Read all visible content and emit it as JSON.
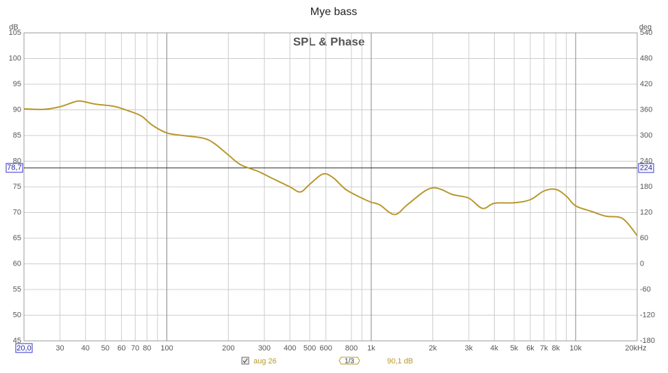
{
  "chart_data": {
    "type": "line",
    "title": "Mye bass",
    "subtitle": "SPL & Phase",
    "y_unit": "dB",
    "y2_unit": "deg",
    "log_x": true,
    "grid": true,
    "x": [
      20,
      25,
      30,
      35,
      38,
      45,
      55,
      65,
      75,
      85,
      100,
      120,
      150,
      170,
      200,
      230,
      280,
      330,
      400,
      450,
      500,
      580,
      650,
      750,
      900,
      1000,
      1100,
      1300,
      1500,
      1800,
      2000,
      2200,
      2500,
      3000,
      3500,
      4000,
      5000,
      6000,
      7000,
      8000,
      9000,
      10000,
      12000,
      14000,
      17000,
      20000
    ],
    "series": [
      {
        "name": "aug 26",
        "color": "#b8972b",
        "values": [
          90.2,
          90.1,
          90.6,
          91.5,
          91.7,
          91.1,
          90.7,
          89.8,
          88.8,
          87.0,
          85.5,
          85.0,
          84.5,
          83.5,
          81.2,
          79.3,
          78.0,
          76.6,
          75.0,
          74.0,
          75.5,
          77.5,
          76.8,
          74.5,
          72.8,
          72.0,
          71.5,
          69.6,
          71.5,
          74.0,
          74.8,
          74.5,
          73.5,
          72.8,
          70.8,
          71.8,
          71.9,
          72.5,
          74.2,
          74.5,
          73.2,
          71.3,
          70.2,
          69.3,
          68.8,
          65.5
        ]
      }
    ],
    "xlim": [
      20,
      20000
    ],
    "xticks": [
      {
        "value": 20,
        "label": "20,0"
      },
      30,
      40,
      50,
      60,
      70,
      80,
      100,
      200,
      300,
      400,
      500,
      600,
      800,
      {
        "value": 1000,
        "label": "1k"
      },
      {
        "value": 2000,
        "label": "2k"
      },
      {
        "value": 3000,
        "label": "3k"
      },
      {
        "value": 4000,
        "label": "4k"
      },
      {
        "value": 5000,
        "label": "5k"
      },
      {
        "value": 6000,
        "label": "6k"
      },
      {
        "value": 7000,
        "label": "7k"
      },
      {
        "value": 8000,
        "label": "8k"
      },
      {
        "value": 10000,
        "label": "10k"
      },
      {
        "value": 20000,
        "label": "20kHz"
      }
    ],
    "x_minor_grid": [
      90,
      900,
      9000
    ],
    "ylim": [
      45,
      105
    ],
    "yticks": [
      45,
      50,
      55,
      60,
      65,
      70,
      75,
      80,
      85,
      90,
      95,
      100,
      105
    ],
    "y2lim": [
      -180,
      540
    ],
    "y2ticks": [
      -180,
      -120,
      -60,
      0,
      60,
      120,
      180,
      240,
      300,
      360,
      420,
      480,
      540
    ],
    "cursor": {
      "y": {
        "value": 78.7,
        "label": "78,7"
      },
      "y2": 224
    },
    "smoothing": "1/3",
    "readout": "90,1 dB"
  }
}
